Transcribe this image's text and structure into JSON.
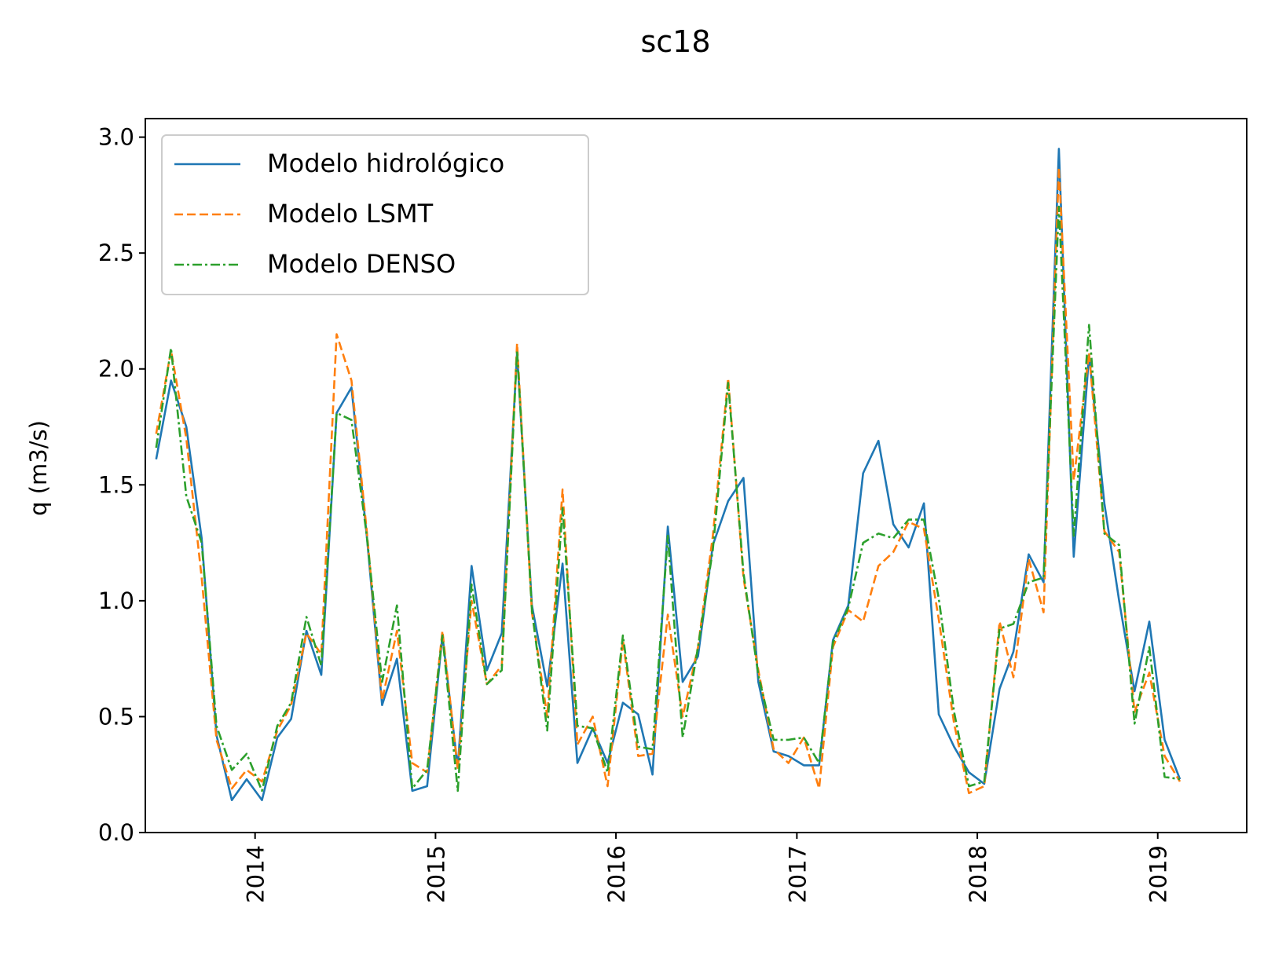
{
  "chart_data": {
    "type": "line",
    "title": "sc18",
    "xlabel": "",
    "ylabel": "q (m3/s)",
    "x_ticks": [
      "2014",
      "2015",
      "2016",
      "2017",
      "2018",
      "2019"
    ],
    "y_ticks": [
      "0.0",
      "0.5",
      "1.0",
      "1.5",
      "2.0",
      "2.5",
      "3.0"
    ],
    "ylim": [
      0,
      3.08
    ],
    "xlim": [
      "2013-05-24",
      "2019-06-30"
    ],
    "grid": false,
    "legend_position": "upper-left",
    "x": [
      "2013-06",
      "2013-07",
      "2013-08",
      "2013-09",
      "2013-10",
      "2013-11",
      "2013-12",
      "2014-01",
      "2014-02",
      "2014-03",
      "2014-04",
      "2014-05",
      "2014-06",
      "2014-07",
      "2014-08",
      "2014-09",
      "2014-10",
      "2014-11",
      "2014-12",
      "2015-01",
      "2015-02",
      "2015-03",
      "2015-04",
      "2015-05",
      "2015-06",
      "2015-07",
      "2015-08",
      "2015-09",
      "2015-10",
      "2015-11",
      "2015-12",
      "2016-01",
      "2016-02",
      "2016-03",
      "2016-04",
      "2016-05",
      "2016-06",
      "2016-07",
      "2016-08",
      "2016-09",
      "2016-10",
      "2016-11",
      "2016-12",
      "2017-01",
      "2017-02",
      "2017-03",
      "2017-04",
      "2017-05",
      "2017-06",
      "2017-07",
      "2017-08",
      "2017-09",
      "2017-10",
      "2017-11",
      "2017-12",
      "2018-01",
      "2018-02",
      "2018-03",
      "2018-04",
      "2018-05",
      "2018-06",
      "2018-07",
      "2018-08",
      "2018-09",
      "2018-10",
      "2018-11",
      "2018-12",
      "2019-01",
      "2019-02"
    ],
    "series": [
      {
        "name": "Modelo hidrológico",
        "color": "#1f77b4",
        "style": "solid",
        "values": [
          1.61,
          1.95,
          1.75,
          1.27,
          0.42,
          0.14,
          0.23,
          0.14,
          0.41,
          0.49,
          0.87,
          0.68,
          1.81,
          1.92,
          1.28,
          0.55,
          0.75,
          0.18,
          0.2,
          0.85,
          0.28,
          1.15,
          0.7,
          0.86,
          2.07,
          0.98,
          0.63,
          1.16,
          0.3,
          0.45,
          0.3,
          0.56,
          0.51,
          0.25,
          1.32,
          0.65,
          0.76,
          1.24,
          1.43,
          1.53,
          0.65,
          0.35,
          0.33,
          0.29,
          0.29,
          0.83,
          0.98,
          1.55,
          1.69,
          1.33,
          1.23,
          1.42,
          0.51,
          0.37,
          0.26,
          0.21,
          0.62,
          0.78,
          1.2,
          1.08,
          2.95,
          1.19,
          2.06,
          1.42,
          1.0,
          0.61,
          0.91,
          0.4,
          0.23
        ]
      },
      {
        "name": "Modelo LSMT",
        "color": "#ff7f0e",
        "style": "dashed",
        "values": [
          1.72,
          2.08,
          1.7,
          1.1,
          0.4,
          0.19,
          0.27,
          0.22,
          0.44,
          0.55,
          0.86,
          0.77,
          2.15,
          1.95,
          1.3,
          0.57,
          0.87,
          0.3,
          0.26,
          0.87,
          0.27,
          1.0,
          0.64,
          0.72,
          2.11,
          0.95,
          0.5,
          1.48,
          0.38,
          0.5,
          0.2,
          0.83,
          0.33,
          0.34,
          0.94,
          0.5,
          0.8,
          1.28,
          1.96,
          1.1,
          0.7,
          0.36,
          0.3,
          0.41,
          0.19,
          0.8,
          0.96,
          0.91,
          1.15,
          1.21,
          1.34,
          1.31,
          0.92,
          0.47,
          0.17,
          0.2,
          0.91,
          0.67,
          1.18,
          0.95,
          2.87,
          1.52,
          2.07,
          1.3,
          1.21,
          0.52,
          0.69,
          0.33,
          0.22
        ]
      },
      {
        "name": "Modelo DENSO",
        "color": "#2ca02c",
        "style": "dashdot",
        "values": [
          1.66,
          2.09,
          1.45,
          1.25,
          0.46,
          0.27,
          0.34,
          0.18,
          0.46,
          0.56,
          0.93,
          0.72,
          1.81,
          1.78,
          1.28,
          0.65,
          0.98,
          0.19,
          0.27,
          0.85,
          0.18,
          1.07,
          0.64,
          0.7,
          2.08,
          0.96,
          0.44,
          1.4,
          0.46,
          0.45,
          0.26,
          0.85,
          0.37,
          0.36,
          1.28,
          0.41,
          0.8,
          1.22,
          1.94,
          1.12,
          0.68,
          0.4,
          0.4,
          0.41,
          0.3,
          0.82,
          0.97,
          1.25,
          1.29,
          1.27,
          1.35,
          1.35,
          1.01,
          0.52,
          0.2,
          0.22,
          0.88,
          0.9,
          1.08,
          1.1,
          2.7,
          1.28,
          2.19,
          1.29,
          1.24,
          0.47,
          0.8,
          0.24,
          0.23
        ]
      }
    ]
  }
}
